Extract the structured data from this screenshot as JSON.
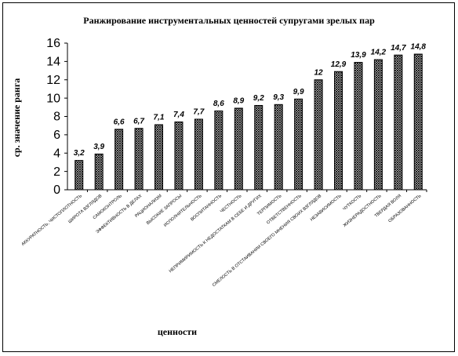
{
  "chart_data": {
    "type": "bar",
    "title": "Ранжирование инструментальных ценностей супругами зрелых пар",
    "x_label": "ценности",
    "y_label": "ср. значение ранга",
    "categories": [
      "АККУРАТНОСТЬ, ЧИСТОПЛОТНОСТЬ",
      "ШИРОТА ВЗГЛЯДОВ",
      "САМОКОНТРОЛЬ",
      "ЭФФЕКТИВНОСТЬ В ДЕЛАХ",
      "РАЦИОНАЛИЗМ",
      "ВЫСОКИЕ ЗАПРОСЫ",
      "ИСПОЛНИТЕЛЬНОСТЬ",
      "ВОСПИТАННОСТЬ",
      "ЧЕСТНОСТЬ",
      "НЕПРИМИРИМОСТЬ К НЕДОСТАТКАМ В СЕБЕ И ДРУГИХ",
      "ТЕРПИМОСТЬ",
      "ОТВЕТСТВЕННОСТЬ",
      "СМЕЛОСТЬ В ОТСТАИВАНИИ СВОЕГО МНЕНИЯ СВОИХ ВЗГЛЯДОВ",
      "НЕЗАВИСИМОСТЬ",
      "ЧУТКОСТЬ",
      "ЖИЗНЕРАДОСТНОСТЬ",
      "ТВЕРДАЯ ВОЛЯ",
      "ОБРАЗОВАННОСТЬ"
    ],
    "values": [
      3.2,
      3.9,
      6.6,
      6.7,
      7.1,
      7.4,
      7.7,
      8.6,
      8.9,
      9.2,
      9.3,
      9.9,
      12,
      12.9,
      13.9,
      14.2,
      14.7,
      14.8
    ],
    "value_labels": [
      "3,2",
      "3,9",
      "6,6",
      "6,7",
      "7,1",
      "7,4",
      "7,7",
      "8,6",
      "8,9",
      "9,2",
      "9,3",
      "9,9",
      "12",
      "12,9",
      "13,9",
      "14,2",
      "14,7",
      "14,8"
    ],
    "color": "#000000",
    "ylim": [
      0,
      16
    ],
    "yticks": [
      0,
      2,
      4,
      6,
      8,
      10,
      12,
      14,
      16
    ],
    "grid": false
  }
}
